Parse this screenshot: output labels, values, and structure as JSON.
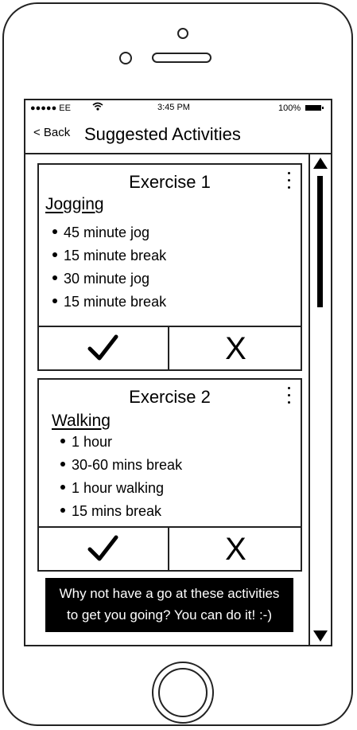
{
  "status_bar": {
    "carrier": "●●●●● EE",
    "wifi_icon": "wifi-icon",
    "time": "3:45 PM",
    "battery": "100%"
  },
  "nav": {
    "back_label": "< Back",
    "title": "Suggested Activities"
  },
  "exercises": [
    {
      "title": "Exercise 1",
      "activity": "Jogging",
      "steps": [
        "45 minute jog",
        "15 minute break",
        "30 minute jog",
        "15 minute break"
      ]
    },
    {
      "title": "Exercise 2",
      "activity": "Walking",
      "steps": [
        "1 hour",
        "30-60 mins break",
        "1 hour walking",
        "15 mins break"
      ]
    }
  ],
  "actions": {
    "reject_label": "X"
  },
  "tip": {
    "line1": "Why not have a go at these activities",
    "line2": "to get you going? You can do it! :-)"
  }
}
